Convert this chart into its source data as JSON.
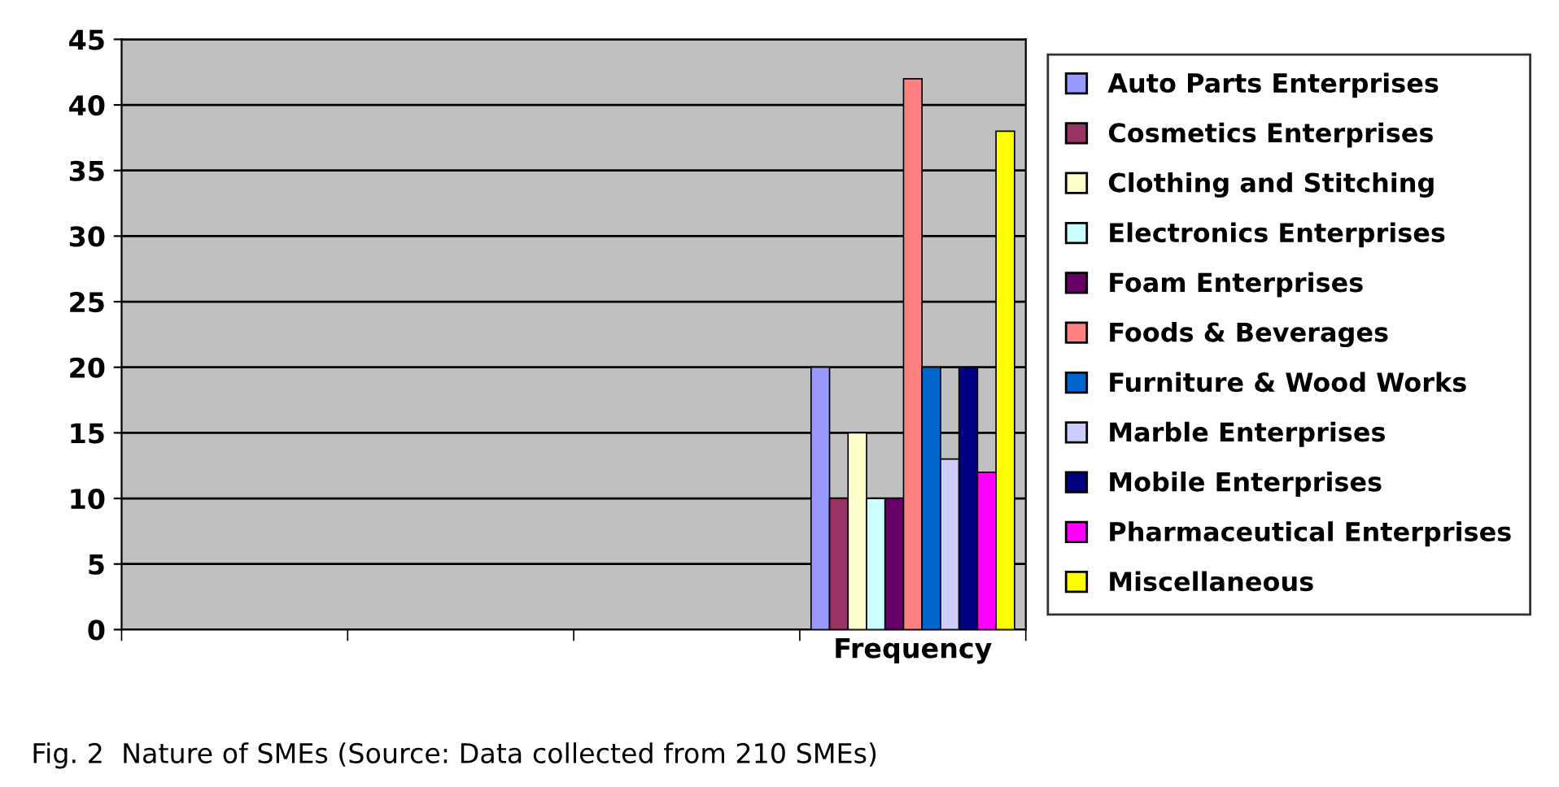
{
  "chart_data": {
    "type": "bar",
    "categories": [
      null,
      null,
      null,
      "Frequency"
    ],
    "series": [
      {
        "name": "Auto Parts Enterprises",
        "color": "#9999ff",
        "values": [
          null,
          null,
          null,
          20
        ]
      },
      {
        "name": "Cosmetics Enterprises",
        "color": "#993366",
        "values": [
          null,
          null,
          null,
          10
        ]
      },
      {
        "name": "Clothing and Stitching",
        "color": "#ffffcc",
        "values": [
          null,
          null,
          null,
          15
        ]
      },
      {
        "name": "Electronics Enterprises",
        "color": "#ccffff",
        "values": [
          null,
          null,
          null,
          10
        ]
      },
      {
        "name": "Foam Enterprises",
        "color": "#660066",
        "values": [
          null,
          null,
          null,
          10
        ]
      },
      {
        "name": "Foods & Beverages",
        "color": "#ff8080",
        "values": [
          null,
          null,
          null,
          42
        ]
      },
      {
        "name": "Furniture & Wood Works",
        "color": "#0066cc",
        "values": [
          null,
          null,
          null,
          20
        ]
      },
      {
        "name": "Marble Enterprises",
        "color": "#ccccff",
        "values": [
          null,
          null,
          null,
          13
        ]
      },
      {
        "name": "Mobile Enterprises",
        "color": "#000080",
        "values": [
          null,
          null,
          null,
          20
        ]
      },
      {
        "name": "Pharmaceutical Enterprises",
        "color": "#ff00ff",
        "values": [
          null,
          null,
          null,
          12
        ]
      },
      {
        "name": "Miscellaneous",
        "color": "#ffff00",
        "values": [
          null,
          null,
          null,
          38
        ]
      }
    ],
    "ylim": [
      0,
      45
    ],
    "yticks": [
      0,
      5,
      10,
      15,
      20,
      25,
      30,
      35,
      40,
      45
    ],
    "grid": "y",
    "legend": "right",
    "annotations": [
      "Fig. 2  Nature of SMEs (Source: Data collected from 210 SMEs)"
    ]
  }
}
